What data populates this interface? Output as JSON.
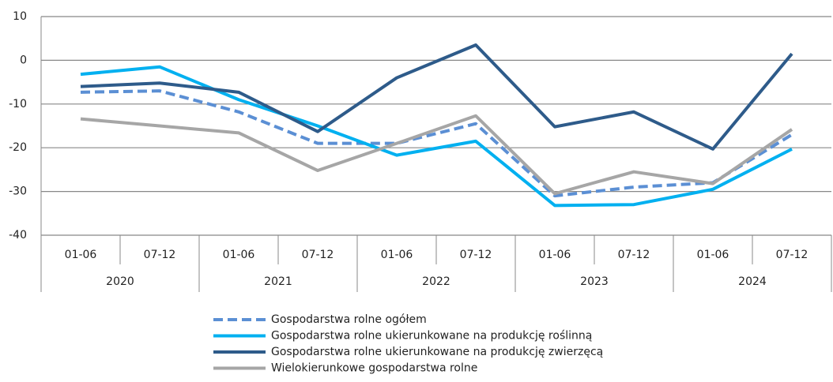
{
  "chart_data": {
    "type": "line",
    "categories": [
      "01-06",
      "07-12",
      "01-06",
      "07-12",
      "01-06",
      "07-12",
      "01-06",
      "07-12",
      "01-06",
      "07-12"
    ],
    "groups": [
      "2020",
      "2021",
      "2022",
      "2023",
      "2024"
    ],
    "series": [
      {
        "name": "Gospodarstwa rolne ogółem",
        "color": "#5b8fd4",
        "dashed": true,
        "values": [
          -7.3,
          -7.0,
          -11.8,
          -19,
          -19,
          -14.5,
          -31,
          -29,
          -28,
          -17
        ]
      },
      {
        "name": "Gospodarstwa rolne ukierunkowane na produkcję roślinną",
        "color": "#00b0f0",
        "dashed": false,
        "values": [
          -3.2,
          -1.5,
          -9,
          -15,
          -21.7,
          -18.5,
          -33.2,
          -33,
          -29.5,
          -20.3
        ]
      },
      {
        "name": "Gospodarstwa rolne ukierunkowane na produkcję zwierzęcą",
        "color": "#2e5b8a",
        "dashed": false,
        "values": [
          -6,
          -5.2,
          -7.3,
          -16.3,
          -4,
          3.5,
          -15.2,
          -11.8,
          -20.3,
          1.5
        ]
      },
      {
        "name": "Wielokierunkowe gospodarstwa rolne",
        "color": "#a6a6a6",
        "dashed": false,
        "values": [
          -13.4,
          -15,
          -16.6,
          -25.2,
          -19,
          -12.7,
          -30.5,
          -25.5,
          -28.2,
          -15.8
        ]
      }
    ],
    "ylim": [
      -40,
      10
    ],
    "yticks": [
      -40,
      -30,
      -20,
      -10,
      0,
      10
    ],
    "grid": true
  }
}
